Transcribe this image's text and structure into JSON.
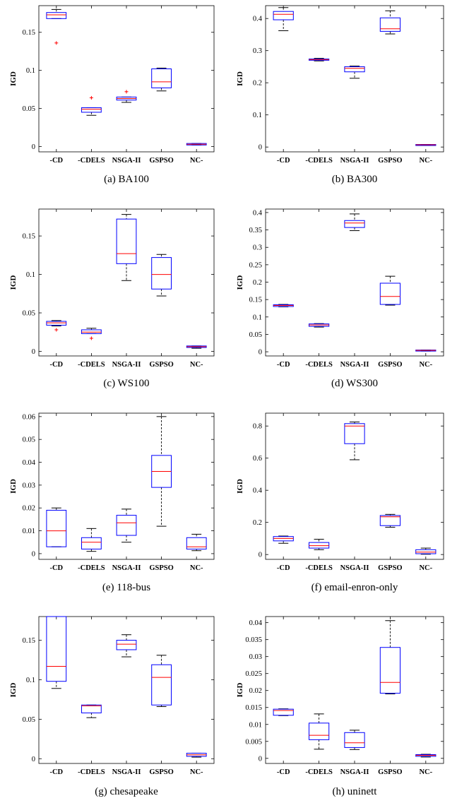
{
  "figure": {
    "panels": [
      {
        "caption": "(a)  BA100"
      },
      {
        "caption": "(b)  BA300"
      },
      {
        "caption": "(c)  WS100"
      },
      {
        "caption": "(d)  WS300"
      },
      {
        "caption": "(e)  118-bus"
      },
      {
        "caption": "(f)  email-enron-only"
      },
      {
        "caption": "(g)  chesapeake"
      },
      {
        "caption": "(h)  uninett"
      }
    ]
  },
  "colors": {
    "box": "#0000ff",
    "median": "#ff0000",
    "whisker": "#000000",
    "outlier": "#ff0000"
  },
  "chart_data": [
    {
      "type": "boxplot",
      "caption": "(a)  BA100",
      "ylabel": "IGD",
      "categories": [
        "-CD",
        "-CDELS",
        "NSGA-II",
        "GSPSO",
        "NC-"
      ],
      "ylim": [
        -0.007,
        0.185
      ],
      "yticks": [
        0,
        0.05,
        0.1,
        0.15
      ],
      "ytick_labels": [
        "0",
        "0.05",
        "0.1",
        "0.15"
      ],
      "boxes": [
        {
          "whislo": 0.168,
          "q1": 0.168,
          "med": 0.173,
          "q3": 0.176,
          "whishi": 0.18,
          "outliers": [
            0.136
          ]
        },
        {
          "whislo": 0.041,
          "q1": 0.045,
          "med": 0.049,
          "q3": 0.051,
          "whishi": 0.051,
          "outliers": [
            0.064
          ]
        },
        {
          "whislo": 0.058,
          "q1": 0.061,
          "med": 0.063,
          "q3": 0.065,
          "whishi": 0.065,
          "outliers": [
            0.072
          ]
        },
        {
          "whislo": 0.073,
          "q1": 0.077,
          "med": 0.085,
          "q3": 0.102,
          "whishi": 0.103,
          "outliers": []
        },
        {
          "whislo": 0.002,
          "q1": 0.002,
          "med": 0.003,
          "q3": 0.004,
          "whishi": 0.004,
          "outliers": []
        }
      ]
    },
    {
      "type": "boxplot",
      "caption": "(b)  BA300",
      "ylabel": "IGD",
      "categories": [
        "-CD",
        "-CDELS",
        "NSGA-II",
        "GSPSO",
        "NC-"
      ],
      "ylim": [
        -0.015,
        0.44
      ],
      "yticks": [
        0,
        0.1,
        0.2,
        0.3,
        0.4
      ],
      "ytick_labels": [
        "0",
        "0.1",
        "0.2",
        "0.3",
        "0.4"
      ],
      "boxes": [
        {
          "whislo": 0.362,
          "q1": 0.396,
          "med": 0.413,
          "q3": 0.422,
          "whishi": 0.434,
          "outliers": []
        },
        {
          "whislo": 0.268,
          "q1": 0.27,
          "med": 0.272,
          "q3": 0.274,
          "whishi": 0.276,
          "outliers": []
        },
        {
          "whislo": 0.214,
          "q1": 0.234,
          "med": 0.245,
          "q3": 0.25,
          "whishi": 0.252,
          "outliers": []
        },
        {
          "whislo": 0.352,
          "q1": 0.36,
          "med": 0.368,
          "q3": 0.402,
          "whishi": 0.424,
          "outliers": []
        },
        {
          "whislo": 0.005,
          "q1": 0.006,
          "med": 0.007,
          "q3": 0.008,
          "whishi": 0.008,
          "outliers": []
        }
      ]
    },
    {
      "type": "boxplot",
      "caption": "(c)  WS100",
      "ylabel": "IGD",
      "categories": [
        "-CD",
        "-CDELS",
        "NSGA-II",
        "GSPSO",
        "NC-"
      ],
      "ylim": [
        -0.006,
        0.185
      ],
      "yticks": [
        0,
        0.05,
        0.1,
        0.15
      ],
      "ytick_labels": [
        "0",
        "0.05",
        "0.1",
        "0.15"
      ],
      "boxes": [
        {
          "whislo": 0.033,
          "q1": 0.034,
          "med": 0.037,
          "q3": 0.039,
          "whishi": 0.04,
          "outliers": [
            0.028
          ]
        },
        {
          "whislo": 0.023,
          "q1": 0.023,
          "med": 0.025,
          "q3": 0.028,
          "whishi": 0.03,
          "outliers": [
            0.017
          ]
        },
        {
          "whislo": 0.092,
          "q1": 0.114,
          "med": 0.127,
          "q3": 0.172,
          "whishi": 0.178,
          "outliers": []
        },
        {
          "whislo": 0.072,
          "q1": 0.081,
          "med": 0.1,
          "q3": 0.122,
          "whishi": 0.126,
          "outliers": []
        },
        {
          "whislo": 0.004,
          "q1": 0.005,
          "med": 0.006,
          "q3": 0.007,
          "whishi": 0.007,
          "outliers": []
        }
      ]
    },
    {
      "type": "boxplot",
      "caption": "(d)  WS300",
      "ylabel": "IGD",
      "categories": [
        "-CD",
        "-CDELS",
        "NSGA-II",
        "GSPSO",
        "NC-"
      ],
      "ylim": [
        -0.012,
        0.41
      ],
      "yticks": [
        0,
        0.05,
        0.1,
        0.15,
        0.2,
        0.25,
        0.3,
        0.35,
        0.4
      ],
      "ytick_labels": [
        "0",
        "0.05",
        "0.1",
        "0.15",
        "0.2",
        "0.25",
        "0.3",
        "0.35",
        "0.4"
      ],
      "boxes": [
        {
          "whislo": 0.129,
          "q1": 0.13,
          "med": 0.133,
          "q3": 0.135,
          "whishi": 0.136,
          "outliers": []
        },
        {
          "whislo": 0.071,
          "q1": 0.073,
          "med": 0.077,
          "q3": 0.08,
          "whishi": 0.081,
          "outliers": []
        },
        {
          "whislo": 0.348,
          "q1": 0.357,
          "med": 0.37,
          "q3": 0.377,
          "whishi": 0.396,
          "outliers": []
        },
        {
          "whislo": 0.134,
          "q1": 0.136,
          "med": 0.159,
          "q3": 0.197,
          "whishi": 0.217,
          "outliers": []
        },
        {
          "whislo": 0.002,
          "q1": 0.003,
          "med": 0.004,
          "q3": 0.005,
          "whishi": 0.005,
          "outliers": []
        }
      ]
    },
    {
      "type": "boxplot",
      "caption": "(e)  118-bus",
      "ylabel": "IGD",
      "categories": [
        "-CD",
        "-CDELS",
        "NSGA-II",
        "GSPSO",
        "NC-"
      ],
      "ylim": [
        -0.0025,
        0.0615
      ],
      "yticks": [
        0,
        0.01,
        0.02,
        0.03,
        0.04,
        0.05,
        0.06
      ],
      "ytick_labels": [
        "0",
        "0.01",
        "0.02",
        "0.03",
        "0.04",
        "0.05",
        "0.06"
      ],
      "boxes": [
        {
          "whislo": 0.003,
          "q1": 0.003,
          "med": 0.01,
          "q3": 0.019,
          "whishi": 0.02,
          "outliers": []
        },
        {
          "whislo": 0.001,
          "q1": 0.002,
          "med": 0.005,
          "q3": 0.007,
          "whishi": 0.011,
          "outliers": []
        },
        {
          "whislo": 0.005,
          "q1": 0.008,
          "med": 0.0135,
          "q3": 0.0168,
          "whishi": 0.0195,
          "outliers": []
        },
        {
          "whislo": 0.012,
          "q1": 0.029,
          "med": 0.036,
          "q3": 0.043,
          "whishi": 0.06,
          "outliers": []
        },
        {
          "whislo": 0.0013,
          "q1": 0.002,
          "med": 0.003,
          "q3": 0.007,
          "whishi": 0.0085,
          "outliers": []
        }
      ]
    },
    {
      "type": "boxplot",
      "caption": "(f)  email-enron-only",
      "ylabel": "IGD",
      "categories": [
        "-CD",
        "-CDELS",
        "NSGA-II",
        "GSPSO",
        "NC-"
      ],
      "ylim": [
        -0.03,
        0.88
      ],
      "yticks": [
        0,
        0.2,
        0.4,
        0.6,
        0.8
      ],
      "ytick_labels": [
        "0",
        "0.2",
        "0.4",
        "0.6",
        "0.8"
      ],
      "boxes": [
        {
          "whislo": 0.07,
          "q1": 0.085,
          "med": 0.1,
          "q3": 0.112,
          "whishi": 0.115,
          "outliers": []
        },
        {
          "whislo": 0.03,
          "q1": 0.04,
          "med": 0.055,
          "q3": 0.075,
          "whishi": 0.095,
          "outliers": []
        },
        {
          "whislo": 0.59,
          "q1": 0.69,
          "med": 0.8,
          "q3": 0.815,
          "whishi": 0.825,
          "outliers": []
        },
        {
          "whislo": 0.17,
          "q1": 0.18,
          "med": 0.235,
          "q3": 0.243,
          "whishi": 0.25,
          "outliers": []
        },
        {
          "whislo": 0.002,
          "q1": 0.005,
          "med": 0.015,
          "q3": 0.03,
          "whishi": 0.04,
          "outliers": []
        }
      ]
    },
    {
      "type": "boxplot",
      "caption": "(g)  chesapeake",
      "ylabel": "IGD",
      "categories": [
        "-CD",
        "-CDELS",
        "NSGA-II",
        "GSPSO",
        "NC-"
      ],
      "ylim": [
        -0.006,
        0.18
      ],
      "yticks": [
        0,
        0.05,
        0.1,
        0.15
      ],
      "ytick_labels": [
        "0",
        "0.05",
        "0.1",
        "0.15"
      ],
      "boxes": [
        {
          "whislo": 0.089,
          "q1": 0.098,
          "med": 0.117,
          "q3": 0.18,
          "whishi": 0.18,
          "outliers": []
        },
        {
          "whislo": 0.052,
          "q1": 0.058,
          "med": 0.067,
          "q3": 0.068,
          "whishi": 0.068,
          "outliers": []
        },
        {
          "whislo": 0.129,
          "q1": 0.138,
          "med": 0.145,
          "q3": 0.15,
          "whishi": 0.157,
          "outliers": []
        },
        {
          "whislo": 0.066,
          "q1": 0.068,
          "med": 0.103,
          "q3": 0.119,
          "whishi": 0.131,
          "outliers": []
        },
        {
          "whislo": 0.002,
          "q1": 0.003,
          "med": 0.005,
          "q3": 0.007,
          "whishi": 0.007,
          "outliers": []
        }
      ]
    },
    {
      "type": "boxplot",
      "caption": "(h)  uninett",
      "ylabel": "IGD",
      "categories": [
        "-CD",
        "-CDELS",
        "NSGA-II",
        "GSPSO",
        "NC-"
      ],
      "ylim": [
        -0.0015,
        0.0418
      ],
      "yticks": [
        0,
        0.005,
        0.01,
        0.015,
        0.02,
        0.025,
        0.03,
        0.035,
        0.04
      ],
      "ytick_labels": [
        "0",
        "0.005",
        "0.01",
        "0.015",
        "0.02",
        "0.025",
        "0.03",
        "0.035",
        "0.04"
      ],
      "boxes": [
        {
          "whislo": 0.0126,
          "q1": 0.0127,
          "med": 0.0141,
          "q3": 0.0145,
          "whishi": 0.0146,
          "outliers": []
        },
        {
          "whislo": 0.0027,
          "q1": 0.0055,
          "med": 0.0068,
          "q3": 0.0104,
          "whishi": 0.0131,
          "outliers": []
        },
        {
          "whislo": 0.0026,
          "q1": 0.0032,
          "med": 0.0046,
          "q3": 0.0076,
          "whishi": 0.0083,
          "outliers": []
        },
        {
          "whislo": 0.019,
          "q1": 0.0192,
          "med": 0.0224,
          "q3": 0.0327,
          "whishi": 0.0406,
          "outliers": []
        },
        {
          "whislo": 0.0004,
          "q1": 0.0006,
          "med": 0.0009,
          "q3": 0.0011,
          "whishi": 0.0012,
          "outliers": []
        }
      ]
    }
  ]
}
